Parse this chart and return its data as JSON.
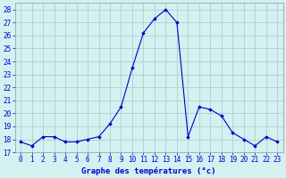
{
  "hours": [
    0,
    1,
    2,
    3,
    4,
    5,
    6,
    7,
    8,
    9,
    10,
    11,
    12,
    13,
    14,
    15,
    16,
    17,
    18,
    19,
    20,
    21,
    22,
    23
  ],
  "temps": [
    17.8,
    17.5,
    18.2,
    18.2,
    17.8,
    17.8,
    18.0,
    18.2,
    19.2,
    20.5,
    23.5,
    26.2,
    27.3,
    28.0,
    27.0,
    18.2,
    20.5,
    20.3,
    19.8,
    18.5,
    18.0,
    17.5,
    18.2,
    17.8
  ],
  "line_color": "#0000cc",
  "marker": "D",
  "marker_size": 1.8,
  "bg_color": "#d4f0f0",
  "grid_color": "#aacaca",
  "xlabel": "Graphe des températures (°c)",
  "ylim": [
    17,
    28.5
  ],
  "yticks": [
    17,
    18,
    19,
    20,
    21,
    22,
    23,
    24,
    25,
    26,
    27,
    28
  ],
  "xticks": [
    0,
    1,
    2,
    3,
    4,
    5,
    6,
    7,
    8,
    9,
    10,
    11,
    12,
    13,
    14,
    15,
    16,
    17,
    18,
    19,
    20,
    21,
    22,
    23
  ],
  "tick_label_color": "#0000cc",
  "tick_label_size": 5.5,
  "xlabel_size": 6.5,
  "linewidth": 0.8,
  "spine_color": "#8899aa"
}
